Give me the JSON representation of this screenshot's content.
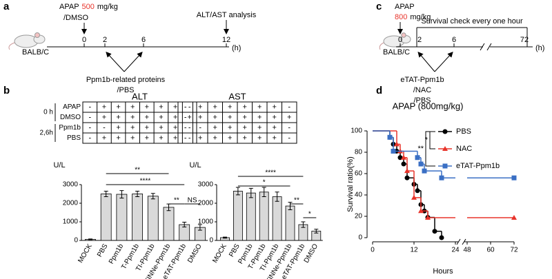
{
  "panel_labels": [
    "a",
    "b",
    "c",
    "d"
  ],
  "timeline_a": {
    "drug": "APAP",
    "dose": "500",
    "dose_unit": "mg/kg",
    "vehicle": "/DMSO",
    "analysis": "ALT/AST analysis",
    "strain": "BALB/C",
    "times": [
      "0",
      "2",
      "6",
      "12"
    ],
    "unit": "(h)",
    "treatment": "Ppm1b-related proteins",
    "control": "/PBS"
  },
  "timeline_c": {
    "drug": "APAP",
    "dose": "800",
    "dose_unit": "mg/kg",
    "check": "Survival check every one hour",
    "strain": "BALB/C",
    "times": [
      "0",
      "2",
      "6",
      "72"
    ],
    "unit": "(h)",
    "treatments": [
      "eTAT-Ppm1b",
      "/NAC",
      "/PBS"
    ]
  },
  "chart_data": [
    {
      "type": "bar",
      "title": "ALT",
      "y_label": "U/L",
      "categories": [
        "MOCK",
        "PBS",
        "Ppm1b",
        "T-Ppm1b",
        "TI-Ppm1b",
        "TINNe-Ppm1b",
        "eTAT-Ppm1b",
        "DMSO"
      ],
      "values": [
        60,
        2500,
        2480,
        2500,
        2380,
        1780,
        850,
        700
      ],
      "errors": [
        20,
        150,
        200,
        150,
        150,
        180,
        130,
        150
      ],
      "color": "#d9d9d9",
      "ylim": [
        0,
        3000
      ],
      "yticks": [
        0,
        1000,
        2000,
        3000
      ],
      "annotations": [
        "**",
        "****",
        "**",
        "NS"
      ],
      "table": {
        "groups": [
          "0 h",
          "2,6h"
        ],
        "row_labels": [
          "APAP",
          "DMSO",
          "Ppm1b",
          "PBS"
        ],
        "rows": [
          [
            "-",
            "+",
            "+",
            "+",
            "+",
            "+",
            "+",
            "-"
          ],
          [
            "-",
            "+",
            "+",
            "+",
            "+",
            "+",
            "+",
            "+"
          ],
          [
            "-",
            "-",
            "+",
            "+",
            "+",
            "+",
            "+",
            "-"
          ],
          [
            "-",
            "+",
            "+",
            "+",
            "+",
            "+",
            "+",
            "-"
          ]
        ]
      }
    },
    {
      "type": "bar",
      "title": "AST",
      "y_label": "U/L",
      "categories": [
        "MOCK",
        "PBS",
        "Ppm1b",
        "T-Ppm1b",
        "TI-Ppm1b",
        "TINNe-Ppm1b",
        "eTAT-Ppm1b",
        "DMSO"
      ],
      "values": [
        150,
        2650,
        2550,
        2600,
        2350,
        1850,
        850,
        500
      ],
      "errors": [
        30,
        200,
        250,
        250,
        250,
        200,
        150,
        100
      ],
      "color": "#d9d9d9",
      "ylim": [
        0,
        3000
      ],
      "yticks": [
        0,
        1000,
        2000,
        3000
      ],
      "annotations": [
        "****",
        "*",
        "**",
        "*"
      ],
      "table": {
        "rows": [
          [
            "-",
            "+",
            "+",
            "+",
            "+",
            "+",
            "+",
            "-"
          ],
          [
            "-",
            "+",
            "+",
            "+",
            "+",
            "+",
            "+",
            "+"
          ],
          [
            "-",
            "-",
            "+",
            "+",
            "+",
            "+",
            "+",
            "-"
          ],
          [
            "-",
            "+",
            "+",
            "+",
            "+",
            "+",
            "+",
            "-"
          ]
        ]
      }
    },
    {
      "type": "line",
      "title": "APAP (800mg/kg)",
      "x_label": "Hours",
      "y_label": "Survival ratio(%)",
      "xlim": [
        0,
        72
      ],
      "xticks": [
        0,
        12,
        24,
        48,
        60,
        72
      ],
      "x_break": [
        24,
        48
      ],
      "ylim": [
        0,
        100
      ],
      "yticks": [
        0,
        20,
        40,
        60,
        80,
        100
      ],
      "legend": "upper right",
      "comparisons": [
        "*",
        "**"
      ],
      "series": [
        {
          "name": "PBS",
          "color": "#000000",
          "marker": "circle",
          "x": [
            0,
            5,
            6,
            7,
            8,
            9,
            10,
            12,
            13,
            14,
            15,
            16,
            18,
            20
          ],
          "values": [
            100,
            94,
            87.5,
            81,
            75,
            69,
            56,
            50,
            44,
            31,
            25,
            19,
            6,
            0
          ]
        },
        {
          "name": "NAC",
          "color": "#e8332a",
          "marker": "triangle",
          "x": [
            0,
            7,
            8,
            9,
            10,
            12,
            14,
            16,
            72
          ],
          "values": [
            100,
            87.5,
            81,
            75,
            62.5,
            37.5,
            25,
            18.75,
            18.75
          ]
        },
        {
          "name": "eTAT-Ppm1b",
          "color": "#3a6fc4",
          "marker": "square",
          "x": [
            0,
            5,
            6,
            13,
            14,
            15,
            20,
            72
          ],
          "values": [
            100,
            94,
            81,
            75,
            69,
            62.5,
            56,
            56
          ]
        }
      ]
    }
  ]
}
